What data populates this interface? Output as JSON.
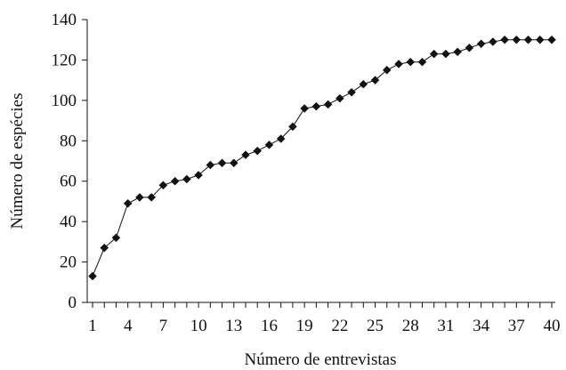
{
  "chart_data": {
    "type": "line",
    "title": "",
    "xlabel": "Número de entrevistas",
    "ylabel": "Número de espécies",
    "x_tick_labels": [
      "1",
      "4",
      "7",
      "10",
      "13",
      "16",
      "19",
      "22",
      "25",
      "28",
      "31",
      "34",
      "37",
      "40"
    ],
    "y_tick_labels": [
      "0",
      "20",
      "40",
      "60",
      "80",
      "100",
      "120",
      "140"
    ],
    "xlim": [
      1,
      40
    ],
    "ylim": [
      0,
      140
    ],
    "grid": false,
    "marker": "diamond",
    "series": [
      {
        "x": [
          1,
          2,
          3,
          4,
          5,
          6,
          7,
          8,
          9,
          10,
          11,
          12,
          13,
          14,
          15,
          16,
          17,
          18,
          19,
          20,
          21,
          22,
          23,
          24,
          25,
          26,
          27,
          28,
          29,
          30,
          31,
          32,
          33,
          34,
          35,
          36,
          37,
          38,
          39,
          40
        ],
        "values": [
          13,
          27,
          32,
          49,
          52,
          52,
          58,
          60,
          61,
          63,
          68,
          69,
          69,
          73,
          75,
          78,
          81,
          87,
          96,
          97,
          98,
          101,
          104,
          108,
          110,
          115,
          118,
          119,
          119,
          123,
          123,
          124,
          126,
          128,
          129,
          130,
          130,
          130,
          130,
          130
        ]
      }
    ]
  }
}
